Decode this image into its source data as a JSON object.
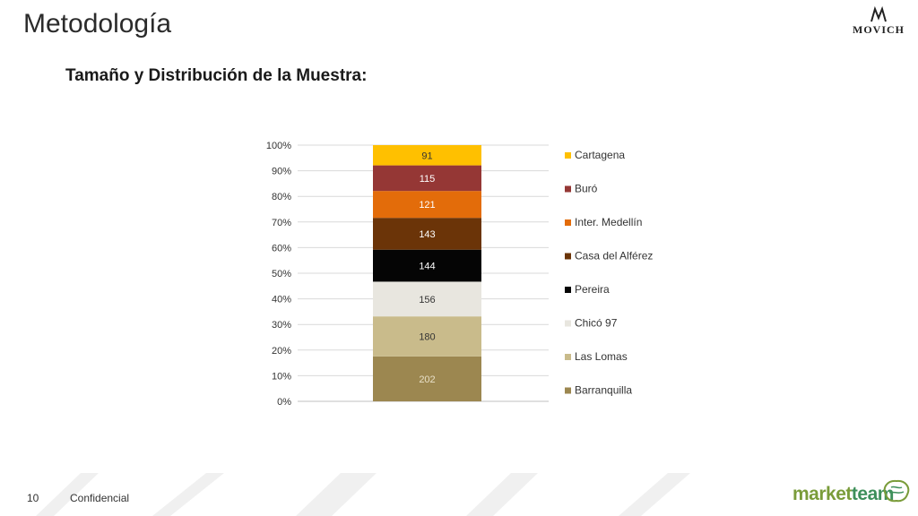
{
  "slide": {
    "title": "Metodología",
    "subtitle": "Tamaño y Distribución de la Muestra:",
    "page_number": "10",
    "footer_label": "Confidencial",
    "brand_logo": "MOVICH",
    "partner_logo": {
      "part1": "market",
      "part2": "team"
    }
  },
  "chart_data": {
    "type": "bar",
    "stacked": true,
    "percent_stacked": true,
    "ylim": [
      0,
      100
    ],
    "y_ticks": [
      "0%",
      "10%",
      "20%",
      "30%",
      "40%",
      "50%",
      "60%",
      "70%",
      "80%",
      "90%",
      "100%"
    ],
    "grid": true,
    "legend_position": "right",
    "series": [
      {
        "name": "Barranquilla",
        "value": 202,
        "color": "#9c8750",
        "label_color": "#e8e0c8"
      },
      {
        "name": "Las Lomas",
        "value": 180,
        "color": "#c9bb8b",
        "label_color": "#333333"
      },
      {
        "name": "Chicó 97",
        "value": 156,
        "color": "#e8e6df",
        "label_color": "#333333"
      },
      {
        "name": "Pereira",
        "value": 144,
        "color": "#050505",
        "label_color": "#ffffff"
      },
      {
        "name": "Casa del Alférez",
        "value": 143,
        "color": "#6b3408",
        "label_color": "#ffffff"
      },
      {
        "name": "Inter. Medellín",
        "value": 121,
        "color": "#e36c0a",
        "label_color": "#ffffff"
      },
      {
        "name": "Buró",
        "value": 115,
        "color": "#953735",
        "label_color": "#ffffff"
      },
      {
        "name": "Cartagena",
        "value": 91,
        "color": "#ffc000",
        "label_color": "#333333"
      }
    ]
  }
}
